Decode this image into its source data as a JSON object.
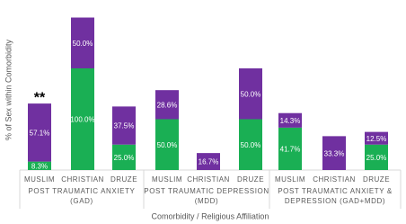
{
  "chart_data": {
    "type": "stacked-bar",
    "y_label": "% of Sex within Comorbidity",
    "x_label": "Comorbidity / Religious Affiliation",
    "categories": [
      "MUSLIM",
      "CHRISTIAN",
      "DRUZE",
      "MUSLIM",
      "CHRISTIAN",
      "DRUZE",
      "MUSLIM",
      "CHRISTIAN",
      "DRUZE"
    ],
    "groups": [
      [
        "POST TRAUMATIC ANXIETY",
        "(GAD)"
      ],
      [
        "POST TRAUMATIC DEPRESSION",
        "(MDD)"
      ],
      [
        "POST TRAUMATIC ANXIETY &",
        "DEPRESSION (GAD+MDD)"
      ]
    ],
    "series": [
      {
        "color": "#1aaf54",
        "values": [
          8.3,
          100,
          25,
          50,
          null,
          50,
          41.7,
          null,
          25
        ],
        "value_labels": [
          "8.3%",
          "100.0%",
          "25.0%",
          "50.0%",
          null,
          "50.0%",
          "41.7%",
          null,
          "25.0%"
        ]
      },
      {
        "color": "#7030a0",
        "values": [
          57.1,
          50,
          37.5,
          28.6,
          16.7,
          50,
          14.3,
          33.3,
          12.5
        ],
        "value_labels": [
          "57.1%",
          "50.0%",
          "37.5%",
          "28.6%",
          "16.7%",
          "50.0%",
          "14.3%",
          "33.3%",
          "12.5%"
        ]
      }
    ],
    "annotation": "**",
    "ylim": [
      0,
      150
    ]
  }
}
